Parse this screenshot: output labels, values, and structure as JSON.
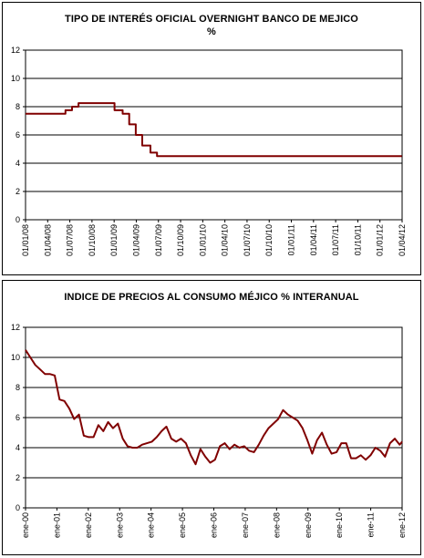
{
  "charts": [
    {
      "title_line1": "TIPO DE INTERÉS OFICIAL OVERNIGHT BANCO DE MEJICO",
      "title_line2": "%"
    },
    {
      "title_line1": "INDICE DE PRECIOS AL CONSUMO MÉJICO % INTERANUAL",
      "title_line2": ""
    }
  ],
  "chart_data": [
    {
      "type": "line",
      "title": "TIPO DE INTERÉS OFICIAL OVERNIGHT BANCO DE MEJICO %",
      "xlabel": "",
      "ylabel": "",
      "ylim": [
        0,
        12
      ],
      "yticks": [
        0,
        2,
        4,
        6,
        8,
        10,
        12
      ],
      "grid": true,
      "legend": "none",
      "line_color": "#800000",
      "xlim": [
        "2008-01-01",
        "2012-06-01"
      ],
      "x_tick_labels": [
        "01/01/08",
        "01/04/08",
        "01/07/08",
        "01/10/08",
        "01/01/09",
        "01/04/09",
        "01/07/09",
        "01/10/09",
        "01/01/10",
        "01/04/10",
        "01/07/10",
        "01/10/10",
        "01/01/11",
        "01/04/11",
        "01/07/11",
        "01/10/11",
        "01/01/12",
        "01/04/12"
      ],
      "series": [
        {
          "x": [
            "2008-01-01",
            "2008-06-20",
            "2008-07-18",
            "2008-08-15",
            "2009-01-16",
            "2009-02-20",
            "2009-03-20",
            "2009-04-17",
            "2009-05-15",
            "2009-06-19",
            "2009-07-17",
            "2012-05-31"
          ],
          "values": [
            7.5,
            7.75,
            8.0,
            8.25,
            7.75,
            7.5,
            6.75,
            6.0,
            5.25,
            4.75,
            4.5,
            4.5
          ]
        }
      ]
    },
    {
      "type": "line",
      "title": "INDICE DE PRECIOS AL CONSUMO MÉJICO % INTERANUAL",
      "xlabel": "",
      "ylabel": "",
      "ylim": [
        0,
        12
      ],
      "yticks": [
        0,
        2,
        4,
        6,
        8,
        10,
        12
      ],
      "grid": true,
      "legend": "none",
      "line_color": "#800000",
      "xlim": [
        "2000-01",
        "2012-12"
      ],
      "x_tick_labels": [
        "ene-00",
        "ene-01",
        "ene-02",
        "ene-03",
        "ene-04",
        "ene-05",
        "ene-06",
        "ene-07",
        "ene-08",
        "ene-09",
        "ene-10",
        "ene-11",
        "ene-12"
      ],
      "series": [
        {
          "x": [
            "2000-01",
            "2000-03",
            "2000-05",
            "2000-07",
            "2000-09",
            "2000-11",
            "2001-01",
            "2001-03",
            "2001-05",
            "2001-07",
            "2001-09",
            "2001-11",
            "2002-01",
            "2002-03",
            "2002-05",
            "2002-07",
            "2002-09",
            "2002-11",
            "2003-01",
            "2003-03",
            "2003-05",
            "2003-07",
            "2003-09",
            "2003-11",
            "2004-01",
            "2004-03",
            "2004-05",
            "2004-07",
            "2004-09",
            "2004-11",
            "2005-01",
            "2005-03",
            "2005-05",
            "2005-07",
            "2005-09",
            "2005-11",
            "2006-01",
            "2006-03",
            "2006-05",
            "2006-07",
            "2006-09",
            "2006-11",
            "2007-01",
            "2007-03",
            "2007-05",
            "2007-07",
            "2007-09",
            "2007-11",
            "2008-01",
            "2008-03",
            "2008-05",
            "2008-07",
            "2008-09",
            "2008-11",
            "2009-01",
            "2009-03",
            "2009-05",
            "2009-07",
            "2009-09",
            "2009-11",
            "2010-01",
            "2010-03",
            "2010-05",
            "2010-07",
            "2010-09",
            "2010-11",
            "2011-01",
            "2011-03",
            "2011-05",
            "2011-07",
            "2011-09",
            "2011-11",
            "2012-01",
            "2012-03",
            "2012-05",
            "2012-07",
            "2012-09",
            "2012-11",
            "2012-12"
          ],
          "values": [
            10.5,
            10.0,
            9.5,
            9.2,
            8.9,
            8.9,
            8.8,
            7.2,
            7.1,
            6.6,
            5.9,
            6.2,
            4.8,
            4.7,
            4.7,
            5.5,
            5.1,
            5.7,
            5.3,
            5.6,
            4.6,
            4.1,
            4.0,
            4.0,
            4.2,
            4.3,
            4.4,
            4.7,
            5.1,
            5.4,
            4.6,
            4.4,
            4.6,
            4.3,
            3.5,
            2.9,
            3.9,
            3.4,
            3.0,
            3.2,
            4.1,
            4.3,
            3.9,
            4.2,
            4.0,
            4.1,
            3.8,
            3.7,
            4.2,
            4.8,
            5.3,
            5.6,
            5.9,
            6.5,
            6.2,
            6.0,
            5.8,
            5.3,
            4.5,
            3.6,
            4.5,
            5.0,
            4.2,
            3.6,
            3.7,
            4.3,
            4.3,
            3.3,
            3.3,
            3.5,
            3.2,
            3.5,
            4.0,
            3.8,
            3.4,
            4.3,
            4.6,
            4.2,
            4.4
          ]
        }
      ]
    }
  ]
}
